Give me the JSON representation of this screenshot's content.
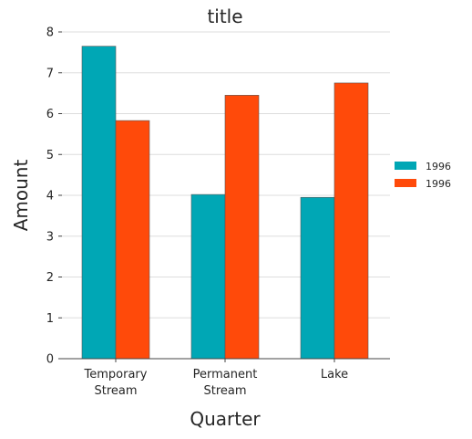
{
  "chart_data": {
    "type": "bar",
    "title": "title",
    "xlabel": "Quarter",
    "ylabel": "Amount",
    "categories": [
      "Temporary Stream",
      "Permanent Stream",
      "Lake"
    ],
    "category_lines": [
      [
        "Temporary",
        "Stream"
      ],
      [
        "Permanent",
        "Stream"
      ],
      [
        "Lake"
      ]
    ],
    "series": [
      {
        "name": "1996",
        "color": "#00a7b5",
        "values": [
          7.65,
          4.02,
          3.95
        ]
      },
      {
        "name": "1996",
        "color": "#ff4a0a",
        "values": [
          5.83,
          6.45,
          6.75
        ]
      }
    ],
    "ylim": [
      0,
      8
    ],
    "yticks": [
      "0",
      "1",
      "2",
      "3",
      "4",
      "5",
      "6",
      "7",
      "8"
    ],
    "grid": "horizontal",
    "legend_position": "right"
  }
}
